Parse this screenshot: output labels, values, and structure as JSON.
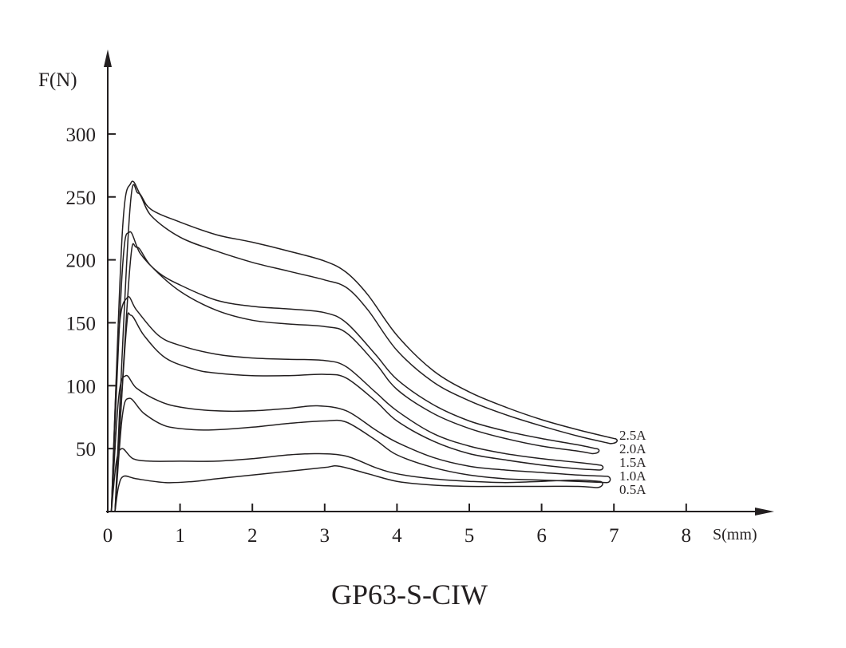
{
  "chart_data": {
    "type": "line",
    "title": "GP63-S-CIW",
    "xlabel": "S(mm)",
    "ylabel": "F(N)",
    "xlim": [
      0,
      8
    ],
    "ylim": [
      0,
      300
    ],
    "xticks": [
      0,
      1,
      2,
      3,
      4,
      5,
      6,
      7,
      8
    ],
    "yticks": [
      50,
      100,
      150,
      200,
      250,
      300
    ],
    "grid": false,
    "color": "#231f20",
    "series": [
      {
        "name": "2.5A",
        "upper": [
          [
            0.05,
            0
          ],
          [
            0.2,
            220
          ],
          [
            0.32,
            261
          ],
          [
            0.45,
            252
          ],
          [
            0.6,
            240
          ],
          [
            1,
            230
          ],
          [
            1.5,
            220
          ],
          [
            2,
            214
          ],
          [
            2.5,
            207
          ],
          [
            3,
            199
          ],
          [
            3.3,
            190
          ],
          [
            3.6,
            172
          ],
          [
            4,
            140
          ],
          [
            4.5,
            112
          ],
          [
            5,
            95
          ],
          [
            5.5,
            83
          ],
          [
            6,
            73
          ],
          [
            6.5,
            65
          ],
          [
            7,
            58
          ]
        ],
        "lower": [
          [
            0.1,
            0
          ],
          [
            0.3,
            235
          ],
          [
            0.42,
            253
          ],
          [
            0.6,
            235
          ],
          [
            1,
            218
          ],
          [
            1.5,
            207
          ],
          [
            2,
            198
          ],
          [
            2.5,
            191
          ],
          [
            3,
            184
          ],
          [
            3.3,
            178
          ],
          [
            3.6,
            160
          ],
          [
            4,
            128
          ],
          [
            4.5,
            103
          ],
          [
            5,
            88
          ],
          [
            5.5,
            77
          ],
          [
            6,
            68
          ],
          [
            6.5,
            60
          ],
          [
            6.95,
            54
          ]
        ]
      },
      {
        "name": "2.0A",
        "upper": [
          [
            0.05,
            0
          ],
          [
            0.2,
            190
          ],
          [
            0.3,
            222
          ],
          [
            0.45,
            205
          ],
          [
            0.7,
            190
          ],
          [
            1,
            180
          ],
          [
            1.5,
            168
          ],
          [
            2,
            163
          ],
          [
            2.5,
            161
          ],
          [
            3,
            158
          ],
          [
            3.3,
            150
          ],
          [
            3.7,
            125
          ],
          [
            4,
            105
          ],
          [
            4.5,
            85
          ],
          [
            5,
            72
          ],
          [
            5.5,
            64
          ],
          [
            6,
            58
          ],
          [
            6.5,
            53
          ],
          [
            6.75,
            50
          ]
        ],
        "lower": [
          [
            0.1,
            0
          ],
          [
            0.3,
            190
          ],
          [
            0.4,
            210
          ],
          [
            0.6,
            195
          ],
          [
            1,
            175
          ],
          [
            1.5,
            160
          ],
          [
            2,
            152
          ],
          [
            2.5,
            149
          ],
          [
            3,
            147
          ],
          [
            3.3,
            142
          ],
          [
            3.7,
            118
          ],
          [
            4,
            97
          ],
          [
            4.5,
            78
          ],
          [
            5,
            66
          ],
          [
            5.5,
            58
          ],
          [
            6,
            52
          ],
          [
            6.5,
            48
          ],
          [
            6.7,
            46
          ]
        ]
      },
      {
        "name": "1.5A",
        "upper": [
          [
            0.05,
            0
          ],
          [
            0.15,
            140
          ],
          [
            0.27,
            170
          ],
          [
            0.4,
            160
          ],
          [
            0.7,
            140
          ],
          [
            1,
            132
          ],
          [
            1.5,
            125
          ],
          [
            2,
            122
          ],
          [
            2.5,
            121
          ],
          [
            3,
            120
          ],
          [
            3.3,
            115
          ],
          [
            3.7,
            95
          ],
          [
            4,
            80
          ],
          [
            4.5,
            62
          ],
          [
            5,
            52
          ],
          [
            5.5,
            46
          ],
          [
            6,
            42
          ],
          [
            6.5,
            39
          ],
          [
            6.8,
            37
          ]
        ],
        "lower": [
          [
            0.1,
            0
          ],
          [
            0.25,
            140
          ],
          [
            0.32,
            156
          ],
          [
            0.5,
            140
          ],
          [
            0.8,
            122
          ],
          [
            1.2,
            113
          ],
          [
            1.5,
            110
          ],
          [
            2,
            108
          ],
          [
            2.5,
            108
          ],
          [
            3,
            109
          ],
          [
            3.3,
            106
          ],
          [
            3.7,
            88
          ],
          [
            4,
            72
          ],
          [
            4.5,
            56
          ],
          [
            5,
            46
          ],
          [
            5.5,
            41
          ],
          [
            6,
            37
          ],
          [
            6.5,
            34
          ],
          [
            6.8,
            33
          ]
        ]
      },
      {
        "name": "1.0A",
        "upper": [
          [
            0.05,
            0
          ],
          [
            0.15,
            90
          ],
          [
            0.25,
            108
          ],
          [
            0.4,
            98
          ],
          [
            0.7,
            88
          ],
          [
            1,
            83
          ],
          [
            1.5,
            80
          ],
          [
            2,
            80
          ],
          [
            2.5,
            82
          ],
          [
            2.9,
            84
          ],
          [
            3.3,
            80
          ],
          [
            3.7,
            65
          ],
          [
            4,
            55
          ],
          [
            4.5,
            43
          ],
          [
            5,
            36
          ],
          [
            5.5,
            33
          ],
          [
            6,
            31
          ],
          [
            6.5,
            29
          ],
          [
            6.9,
            28
          ]
        ],
        "lower": [
          [
            0.1,
            0
          ],
          [
            0.2,
            75
          ],
          [
            0.3,
            90
          ],
          [
            0.5,
            78
          ],
          [
            0.8,
            68
          ],
          [
            1.2,
            65
          ],
          [
            1.5,
            65
          ],
          [
            2,
            67
          ],
          [
            2.5,
            70
          ],
          [
            3,
            72
          ],
          [
            3.3,
            71
          ],
          [
            3.7,
            57
          ],
          [
            4,
            45
          ],
          [
            4.5,
            35
          ],
          [
            5,
            29
          ],
          [
            5.5,
            26
          ],
          [
            6,
            25
          ],
          [
            6.5,
            24
          ],
          [
            6.9,
            23
          ]
        ]
      },
      {
        "name": "0.5A",
        "upper": [
          [
            0.05,
            0
          ],
          [
            0.12,
            40
          ],
          [
            0.2,
            50
          ],
          [
            0.35,
            42
          ],
          [
            0.6,
            40
          ],
          [
            1,
            40
          ],
          [
            1.5,
            40
          ],
          [
            2,
            42
          ],
          [
            2.5,
            45
          ],
          [
            2.9,
            46
          ],
          [
            3.3,
            44
          ],
          [
            3.7,
            35
          ],
          [
            4,
            30
          ],
          [
            4.5,
            26
          ],
          [
            5,
            24
          ],
          [
            5.5,
            23
          ],
          [
            6,
            24
          ],
          [
            6.5,
            25
          ],
          [
            6.8,
            24
          ]
        ],
        "lower": [
          [
            0.1,
            0
          ],
          [
            0.15,
            20
          ],
          [
            0.22,
            28
          ],
          [
            0.4,
            26
          ],
          [
            0.8,
            23
          ],
          [
            1.2,
            24
          ],
          [
            1.5,
            26
          ],
          [
            2,
            29
          ],
          [
            2.5,
            32
          ],
          [
            3,
            35
          ],
          [
            3.2,
            36
          ],
          [
            3.6,
            30
          ],
          [
            4,
            24
          ],
          [
            4.5,
            21
          ],
          [
            5,
            20
          ],
          [
            5.5,
            20
          ],
          [
            6,
            20
          ],
          [
            6.5,
            20
          ],
          [
            6.75,
            19
          ]
        ]
      }
    ]
  }
}
